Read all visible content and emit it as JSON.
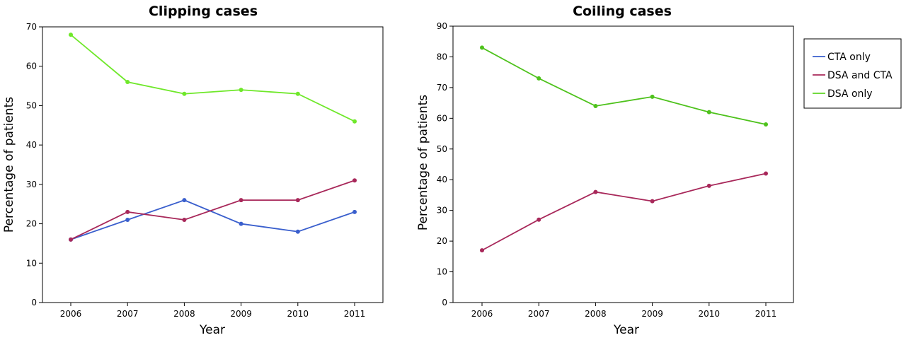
{
  "chart_data": [
    {
      "type": "line",
      "title": "Clipping cases",
      "xlabel": "Year",
      "ylabel": "Percentage of patients",
      "x": [
        "2006",
        "2007",
        "2008",
        "2009",
        "2010",
        "2011"
      ],
      "ylim": [
        0,
        70
      ],
      "yticks": [
        0,
        10,
        20,
        30,
        40,
        50,
        60,
        70
      ],
      "grid": false,
      "series": [
        {
          "name": "CTA only",
          "color": "#3a5fcd",
          "values": [
            16,
            21,
            26,
            20,
            18,
            23
          ]
        },
        {
          "name": "DSA and CTA",
          "color": "#a8285a",
          "values": [
            16,
            23,
            21,
            26,
            26,
            31
          ]
        },
        {
          "name": "DSA only",
          "color": "#6fe82a",
          "values": [
            68,
            56,
            53,
            54,
            53,
            46
          ]
        }
      ]
    },
    {
      "type": "line",
      "title": "Coiling cases",
      "xlabel": "Year",
      "ylabel": "Percentage of patients",
      "x": [
        "2006",
        "2007",
        "2008",
        "2009",
        "2010",
        "2011"
      ],
      "ylim": [
        0,
        90
      ],
      "yticks": [
        0,
        10,
        20,
        30,
        40,
        50,
        60,
        70,
        80,
        90
      ],
      "grid": false,
      "legend_position": "right",
      "series": [
        {
          "name": "DSA and CTA",
          "color": "#a8285a",
          "values": [
            17,
            27,
            36,
            33,
            38,
            42
          ]
        },
        {
          "name": "DSA only",
          "color": "#4ec21c",
          "values": [
            83,
            73,
            64,
            67,
            62,
            58
          ]
        }
      ]
    }
  ],
  "legend": {
    "items": [
      {
        "label": "CTA only",
        "color": "#3a5fcd"
      },
      {
        "label": "DSA and CTA",
        "color": "#a8285a"
      },
      {
        "label": "DSA only",
        "color": "#5ed424"
      }
    ]
  }
}
